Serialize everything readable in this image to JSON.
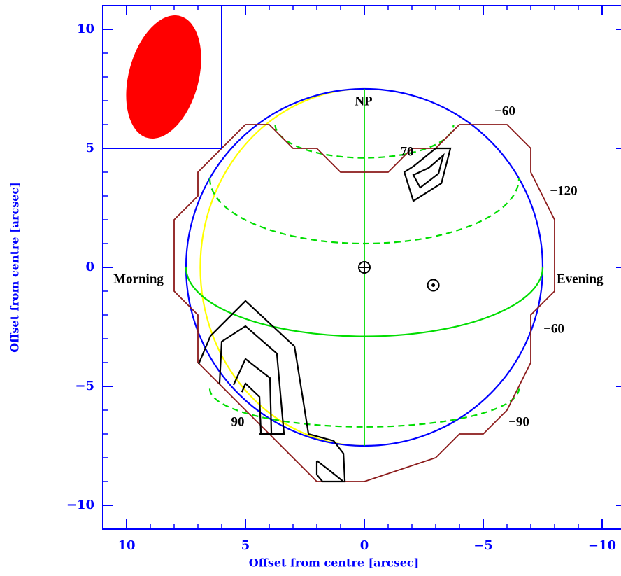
{
  "chart_data": {
    "type": "disk-map",
    "xlabel": "Offset from centre [arcsec]",
    "ylabel": "Offset from centre [arcsec]",
    "xlim": [
      11,
      -11
    ],
    "ylim": [
      -11,
      11
    ],
    "xticks": [
      10,
      5,
      0,
      {
        "value": -5,
        "label": "−5"
      },
      {
        "value": -10,
        "label": "−10"
      }
    ],
    "yticks": [
      {
        "value": -10,
        "label": "−10"
      },
      {
        "value": -5,
        "label": "−5"
      },
      0,
      5,
      10
    ],
    "minor_tick_step": 1,
    "frame_color": "#0000ff",
    "inset": {
      "x": 6,
      "y": 5,
      "color": "#0000ff"
    },
    "beam": {
      "x": 8.44,
      "y": 8.0,
      "rx": 1.47,
      "ry": 2.65,
      "angle": 15,
      "color": "#ff0000"
    },
    "ellipses": [
      {
        "x": 0,
        "y": 0,
        "rx": 6.9,
        "ry": 7.5,
        "part": "left",
        "dashed": false,
        "color": "#ffff00"
      },
      {
        "x": 0,
        "y": 0,
        "rx": 7.5,
        "ry": 7.5,
        "part": "full",
        "dashed": false,
        "color": "#0000ff"
      },
      {
        "x": 0,
        "y": 6.0,
        "rx": 3.75,
        "ry": 1.4,
        "part": "lower",
        "dashed": true,
        "color": "#00dd00"
      },
      {
        "x": 0,
        "y": 3.74,
        "rx": 6.5,
        "ry": 2.74,
        "part": "lower",
        "dashed": true,
        "color": "#00dd00"
      },
      {
        "x": 0,
        "y": 0,
        "rx": 7.5,
        "ry": 2.9,
        "part": "lower",
        "dashed": false,
        "color": "#00dd00"
      },
      {
        "x": 0,
        "y": -5.1,
        "rx": 6.5,
        "ry": 1.6,
        "part": "lower",
        "dashed": true,
        "color": "#00dd00"
      }
    ],
    "curves": [
      {
        "color": "#00dd00",
        "closed": false,
        "x": [
          0,
          0
        ],
        "y": [
          7.5,
          -7.5
        ]
      },
      {
        "color": "#8b1a1a",
        "closed": true,
        "x": [
          5,
          4,
          3,
          2,
          1,
          -1,
          -2,
          -3,
          -4,
          -6,
          -7,
          -7,
          -8,
          -8,
          -7,
          -7,
          -6,
          -5,
          -4,
          -3,
          0,
          2,
          7,
          7,
          8,
          8,
          7,
          7,
          6
        ],
        "y": [
          6,
          6,
          5,
          5,
          4,
          4,
          5,
          5,
          6,
          6,
          5,
          4,
          2,
          -1,
          -2,
          -4,
          -6,
          -7,
          -7,
          -8,
          -9,
          -9,
          -4,
          -2,
          -1,
          2,
          3,
          4,
          5
        ]
      },
      {
        "color": "#000000",
        "closed": true,
        "x": [
          -1.68,
          -2.06,
          -3.24,
          -3.62,
          -3.0,
          -2.06
        ],
        "y": [
          4.0,
          2.79,
          3.53,
          5.0,
          5.0,
          4.24
        ]
      },
      {
        "color": "#000000",
        "closed": true,
        "x": [
          -2.06,
          -2.35,
          -3.12,
          -3.32,
          -2.71
        ],
        "y": [
          3.88,
          3.35,
          3.94,
          4.71,
          4.18
        ]
      },
      {
        "color": "#000000",
        "closed": false,
        "x": [
          6.97,
          6.47,
          5.0,
          2.94,
          2.65,
          2.35,
          1.29,
          0.88,
          0.82
        ],
        "y": [
          -4.06,
          -2.88,
          -1.41,
          -3.32,
          -5.12,
          -7.0,
          -7.29,
          -7.82,
          -9.0
        ]
      },
      {
        "color": "#000000",
        "closed": false,
        "x": [
          6.09,
          6.0,
          5.0,
          3.68,
          3.38,
          3.97
        ],
        "y": [
          -4.88,
          -3.12,
          -2.47,
          -3.62,
          -7.0,
          -7.0
        ]
      },
      {
        "color": "#000000",
        "closed": false,
        "x": [
          5.5,
          5.0,
          3.97,
          3.91,
          4.41
        ],
        "y": [
          -4.94,
          -3.85,
          -4.65,
          -7.0,
          -7.0
        ]
      },
      {
        "color": "#000000",
        "closed": false,
        "x": [
          5.15,
          5.0,
          4.41,
          4.35
        ],
        "y": [
          -5.24,
          -4.88,
          -5.44,
          -7.0
        ]
      },
      {
        "color": "#000000",
        "closed": false,
        "x": [
          2.0,
          1.47,
          0.88,
          1.76,
          2.0,
          2.0
        ],
        "y": [
          -8.12,
          -8.53,
          -9.0,
          -9.0,
          -8.71,
          -8.12
        ]
      }
    ],
    "markers": [
      {
        "symbol": "earth",
        "x": 0,
        "y": 0
      },
      {
        "symbol": "sun",
        "x": -2.9,
        "y": -0.75
      }
    ],
    "annotations": [
      "NP",
      "70",
      "−60",
      "−120",
      "Morning",
      "Evening",
      "−60",
      "−90",
      "90"
    ]
  }
}
